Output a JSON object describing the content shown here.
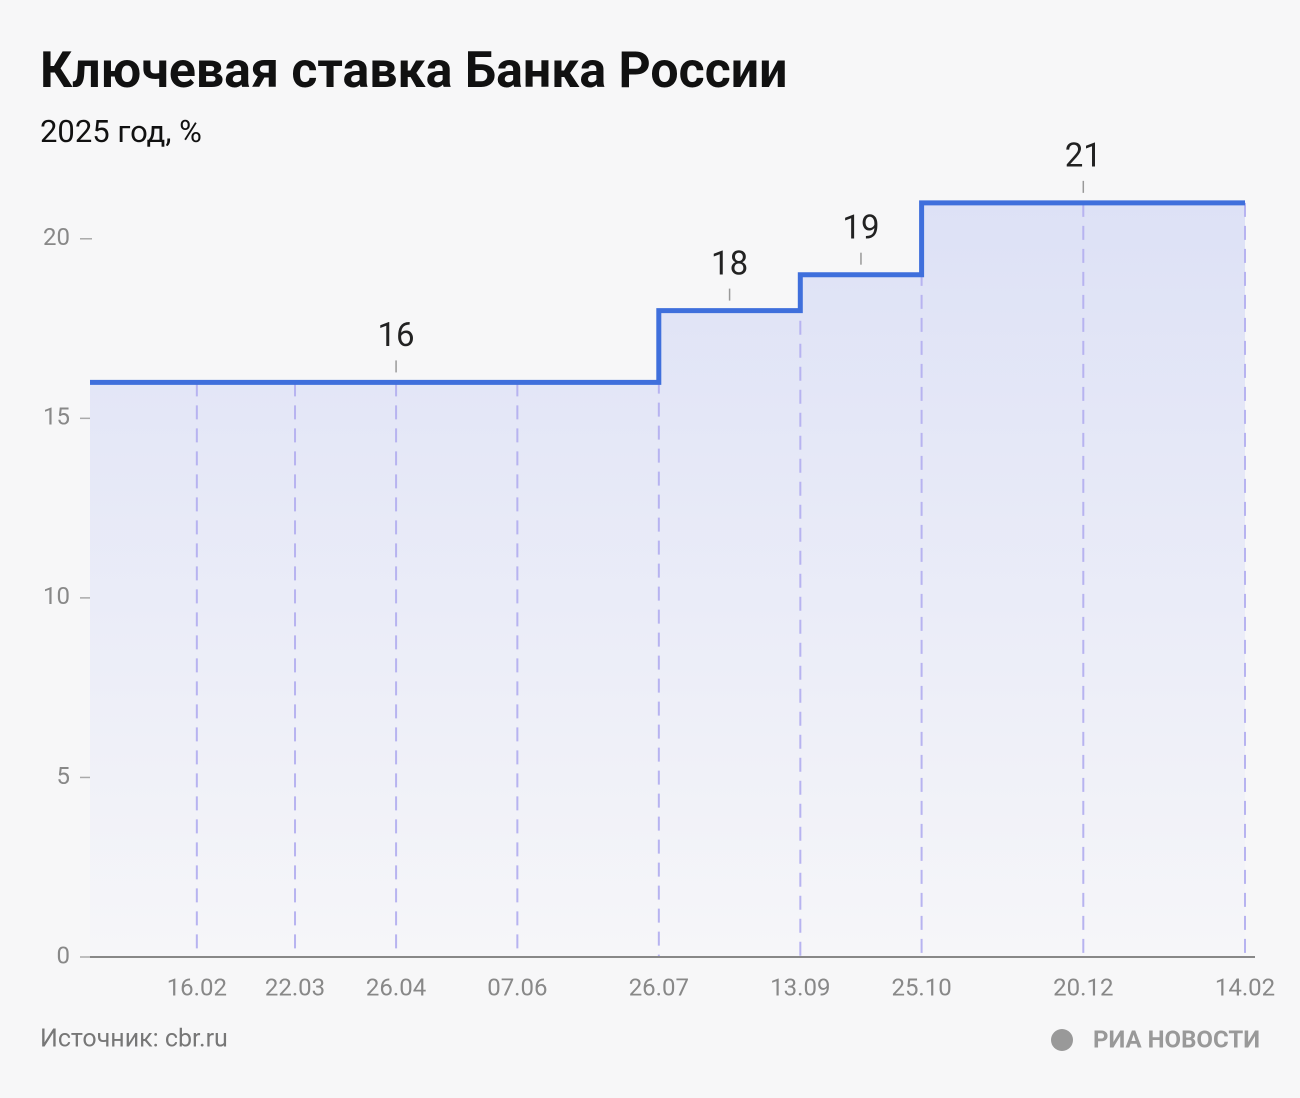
{
  "chart_data": {
    "type": "step",
    "title": "Ключевая ставка Банка России",
    "subtitle": "2025 год, %",
    "x": [
      "16.02",
      "22.03",
      "26.04",
      "07.06",
      "26.07",
      "13.09",
      "25.10",
      "20.12",
      "14.02"
    ],
    "series": [
      {
        "color": "#3f6fdc",
        "values": [
          16,
          16,
          16,
          16,
          18,
          19,
          21,
          21,
          21
        ],
        "value_labels": [
          null,
          null,
          "16",
          null,
          "18",
          "19",
          null,
          "21",
          null
        ]
      }
    ],
    "xlim": [
      "10.01",
      "14.02"
    ],
    "ylim": [
      0,
      22.5
    ],
    "yticks": [
      0,
      5,
      10,
      15,
      20
    ],
    "grid": true,
    "source": "Источник: cbr.ru",
    "brand": "РИА НОВОСТИ"
  }
}
